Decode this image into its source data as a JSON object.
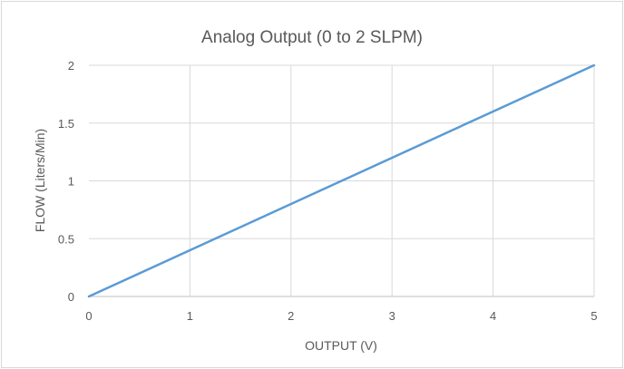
{
  "chart_data": {
    "type": "line",
    "title": "Analog Output (0 to 2 SLPM)",
    "xlabel": "OUTPUT (V)",
    "ylabel": "FLOW (Liters/Min)",
    "xlim": [
      0,
      5
    ],
    "ylim": [
      0,
      2
    ],
    "x_ticks": [
      "0",
      "1",
      "2",
      "3",
      "4",
      "5"
    ],
    "y_ticks": [
      "0",
      "0.5",
      "1",
      "1.5",
      "2"
    ],
    "grid": true,
    "series": [
      {
        "x": [
          0,
          5
        ],
        "y": [
          0,
          2
        ],
        "color": "#5b9bd5"
      }
    ],
    "colors": {
      "grid": "#d9d9d9",
      "axis": "#bfbfbf",
      "text": "#595959"
    }
  }
}
